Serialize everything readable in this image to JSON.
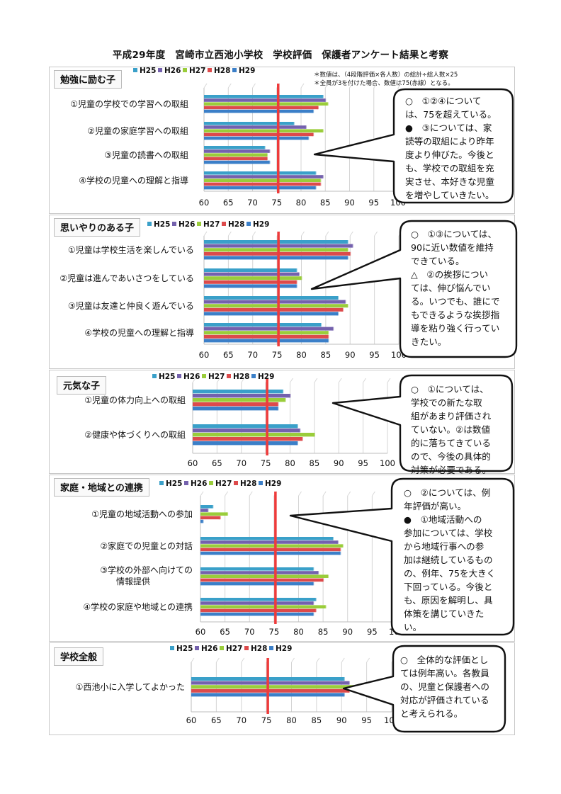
{
  "page_title": "平成29年度　宮崎市立西池小学校　学校評価　保護者アンケート結果と考察",
  "notes": [
    "＊数値は、（4段階評価×各人数）の総計÷総人数×25",
    "＊全員が3を付けた場合、数値は75(赤線）となる。"
  ],
  "colors": {
    "H25": "#3aa0c9",
    "H26": "#7461ad",
    "H27": "#9acd3a",
    "H28": "#dd4a4b",
    "H29": "#3b7fc8",
    "reference_line": "#ee3b3b"
  },
  "chart_data": [
    {
      "type": "bar",
      "title": "勉強に励む子",
      "series_names": [
        "H25",
        "H26",
        "H27",
        "H28",
        "H29"
      ],
      "categories": [
        "①児童の学校での学習への取組",
        "②児童の家庭学習への取組",
        "③児童の読書への取組",
        "④学校の児童への理解と指導"
      ],
      "values": [
        [
          84.5,
          85,
          85.5,
          83.5,
          82.5
        ],
        [
          78.5,
          81,
          84.5,
          82.5,
          81.5
        ],
        [
          72.5,
          73.5,
          73,
          73,
          73.5
        ],
        [
          83,
          84.5,
          84,
          84,
          83
        ]
      ],
      "xlim": [
        60,
        100
      ],
      "xticks": [
        60,
        65,
        70,
        75,
        80,
        85,
        90,
        95,
        100
      ],
      "reference_line": 75,
      "callout": [
        "○　①②④について",
        "は、75を超えている。",
        "●　③については、家",
        "読等の取組により昨年",
        "度より伸びた。今後と",
        "も、学校での取組を充",
        "実させ、本好きな児童",
        "を増やしていきたい。"
      ]
    },
    {
      "type": "bar",
      "title": "思いやりのある子",
      "series_names": [
        "H25",
        "H26",
        "H27",
        "H28",
        "H29"
      ],
      "categories": [
        "①児童は学校生活を楽しんでいる",
        "②児童は進んであいさつをしている",
        "③児童は友達と仲良く遊んでいる",
        "④学校の児童への理解と指導"
      ],
      "values": [
        [
          89.5,
          90.5,
          89.5,
          90,
          89.5
        ],
        [
          79,
          79.5,
          80,
          79,
          79
        ],
        [
          87.5,
          89,
          89.5,
          88.5,
          87.5
        ],
        [
          84,
          86.5,
          85.5,
          85.5,
          85.5
        ]
      ],
      "xlim": [
        60,
        100
      ],
      "xticks": [
        60,
        65,
        70,
        75,
        80,
        85,
        90,
        95,
        100
      ],
      "reference_line": 75,
      "callout": [
        "○　①③については、",
        "90に近い数値を維持",
        "できている。",
        "△　②の挨拶につい",
        "ては、伸び悩んでい",
        "る。いつでも、誰にで",
        "もできるような挨拶指",
        "導を粘り強く行ってい",
        "きたい。"
      ]
    },
    {
      "type": "bar",
      "title": "元気な子",
      "series_names": [
        "H25",
        "H26",
        "H27",
        "H28",
        "H29"
      ],
      "categories": [
        "①児童の体力向上への取組",
        "②健康や体づくりへの取組"
      ],
      "values": [
        [
          78.5,
          80,
          79,
          77.5,
          77.5
        ],
        [
          81.5,
          82,
          85,
          82.5,
          81.5
        ]
      ],
      "xlim": [
        60,
        100
      ],
      "xticks": [
        60,
        65,
        70,
        75,
        80,
        85,
        90,
        95,
        100
      ],
      "reference_line": 75,
      "callout": [
        "○　①については、",
        "学校での新たな取",
        "組があまり評価され",
        "ていない。②は数値",
        "的に落ちてきている",
        "ので、今後の具体的",
        "対策が必要である。"
      ]
    },
    {
      "type": "bar",
      "title": "家庭・地域との連携",
      "series_names": [
        "H25",
        "H26",
        "H27",
        "H28",
        "H29"
      ],
      "categories": [
        "①児童の地域活動への参加",
        "②家庭での児童との対話",
        "③学校の外部へ向けての情報提供",
        "④学校の家庭や地域との連携"
      ],
      "values": [
        [
          62.5,
          61.5,
          65.5,
          64,
          60.5
        ],
        [
          87,
          88,
          89,
          88.5,
          88.5
        ],
        [
          83,
          84,
          86,
          85,
          83
        ],
        [
          83.5,
          83,
          85.5,
          83.5,
          83
        ]
      ],
      "xlim": [
        60,
        100
      ],
      "xticks": [
        60,
        65,
        70,
        75,
        80,
        85,
        90,
        95,
        100
      ],
      "reference_line": 75,
      "callout": [
        "○　②については、例",
        "年評価が高い。",
        "●　①地域活動への",
        "参加については、学校",
        "から地域行事への参",
        "加は継続しているもの",
        "の、例年、75を大きく",
        "下回っている。今後と",
        "も、原因を解明し、具",
        "体策を講じていきた",
        "い。"
      ]
    },
    {
      "type": "bar",
      "title": "学校全般",
      "series_names": [
        "H25",
        "H26",
        "H27",
        "H28",
        "H29"
      ],
      "categories": [
        "①西池小に入学してよかった"
      ],
      "values": [
        [
          90.5,
          91.5,
          94,
          91.5,
          90.5
        ]
      ],
      "xlim": [
        60,
        100
      ],
      "xticks": [
        60,
        65,
        70,
        75,
        80,
        85,
        90,
        95,
        100
      ],
      "reference_line": 75,
      "callout": [
        "○　全体的な評価とし",
        "ては例年高い。各教員",
        "の、児童と保護者への",
        "対応が評価されている",
        "と考えられる。"
      ]
    }
  ]
}
